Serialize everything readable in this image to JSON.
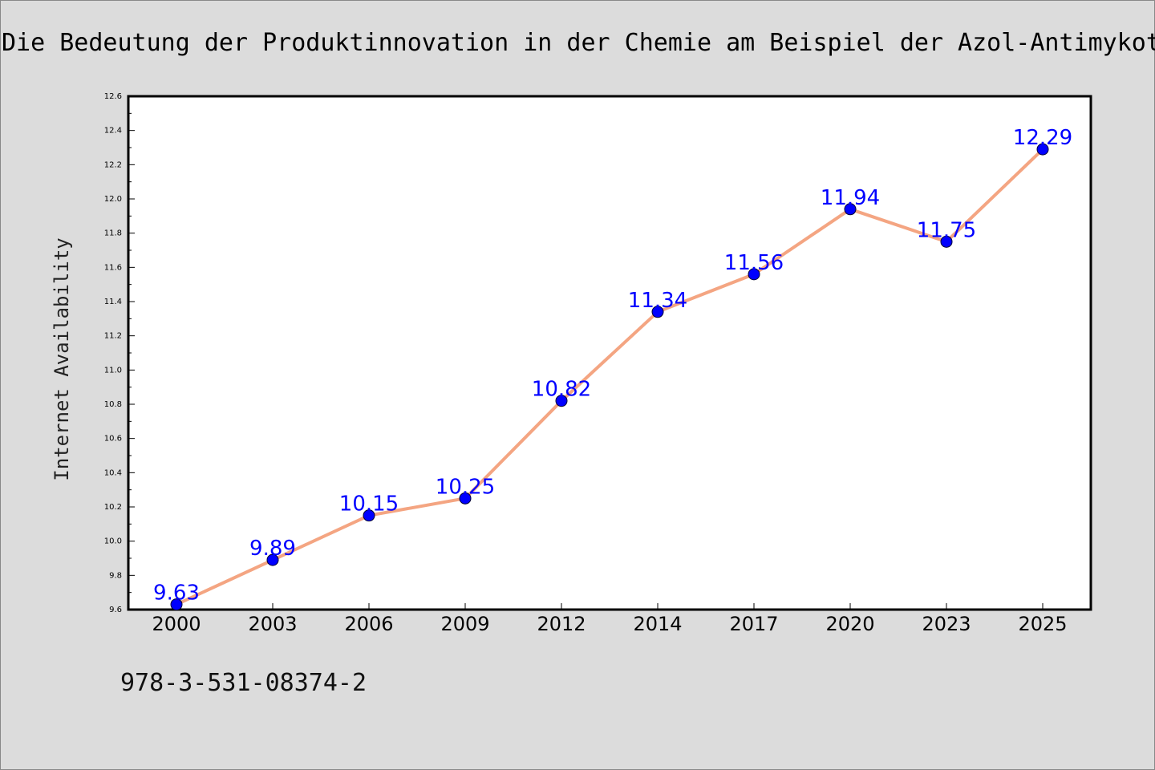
{
  "title": "Die Bedeutung der Produktinnovation in der Chemie am Beispiel der Azol-Antimykotika",
  "isbn": "978-3-531-08374-2",
  "chart_data": {
    "type": "line",
    "ylabel": "Internet Availability",
    "categories": [
      "2000",
      "2003",
      "2006",
      "2009",
      "2012",
      "2014",
      "2017",
      "2020",
      "2023",
      "2025"
    ],
    "values": [
      9.63,
      9.89,
      10.15,
      10.25,
      10.82,
      11.34,
      11.56,
      11.94,
      11.75,
      12.29
    ],
    "data_labels": [
      "9.63",
      "9.89",
      "10.15",
      "10.25",
      "10.82",
      "11.34",
      "11.56",
      "11.94",
      "11.75",
      "12.29"
    ],
    "ylim": [
      9.6,
      12.6
    ],
    "yticks": [
      "9.6",
      "9.8",
      "10.0",
      "10.2",
      "10.4",
      "10.6",
      "10.8",
      "11.0",
      "11.2",
      "11.4",
      "11.6",
      "11.8",
      "12.0",
      "12.2",
      "12.4",
      "12.6"
    ],
    "grid": false,
    "line_color": "#f4a582",
    "marker_color": "#0000ff",
    "label_color": "#0000ff"
  }
}
